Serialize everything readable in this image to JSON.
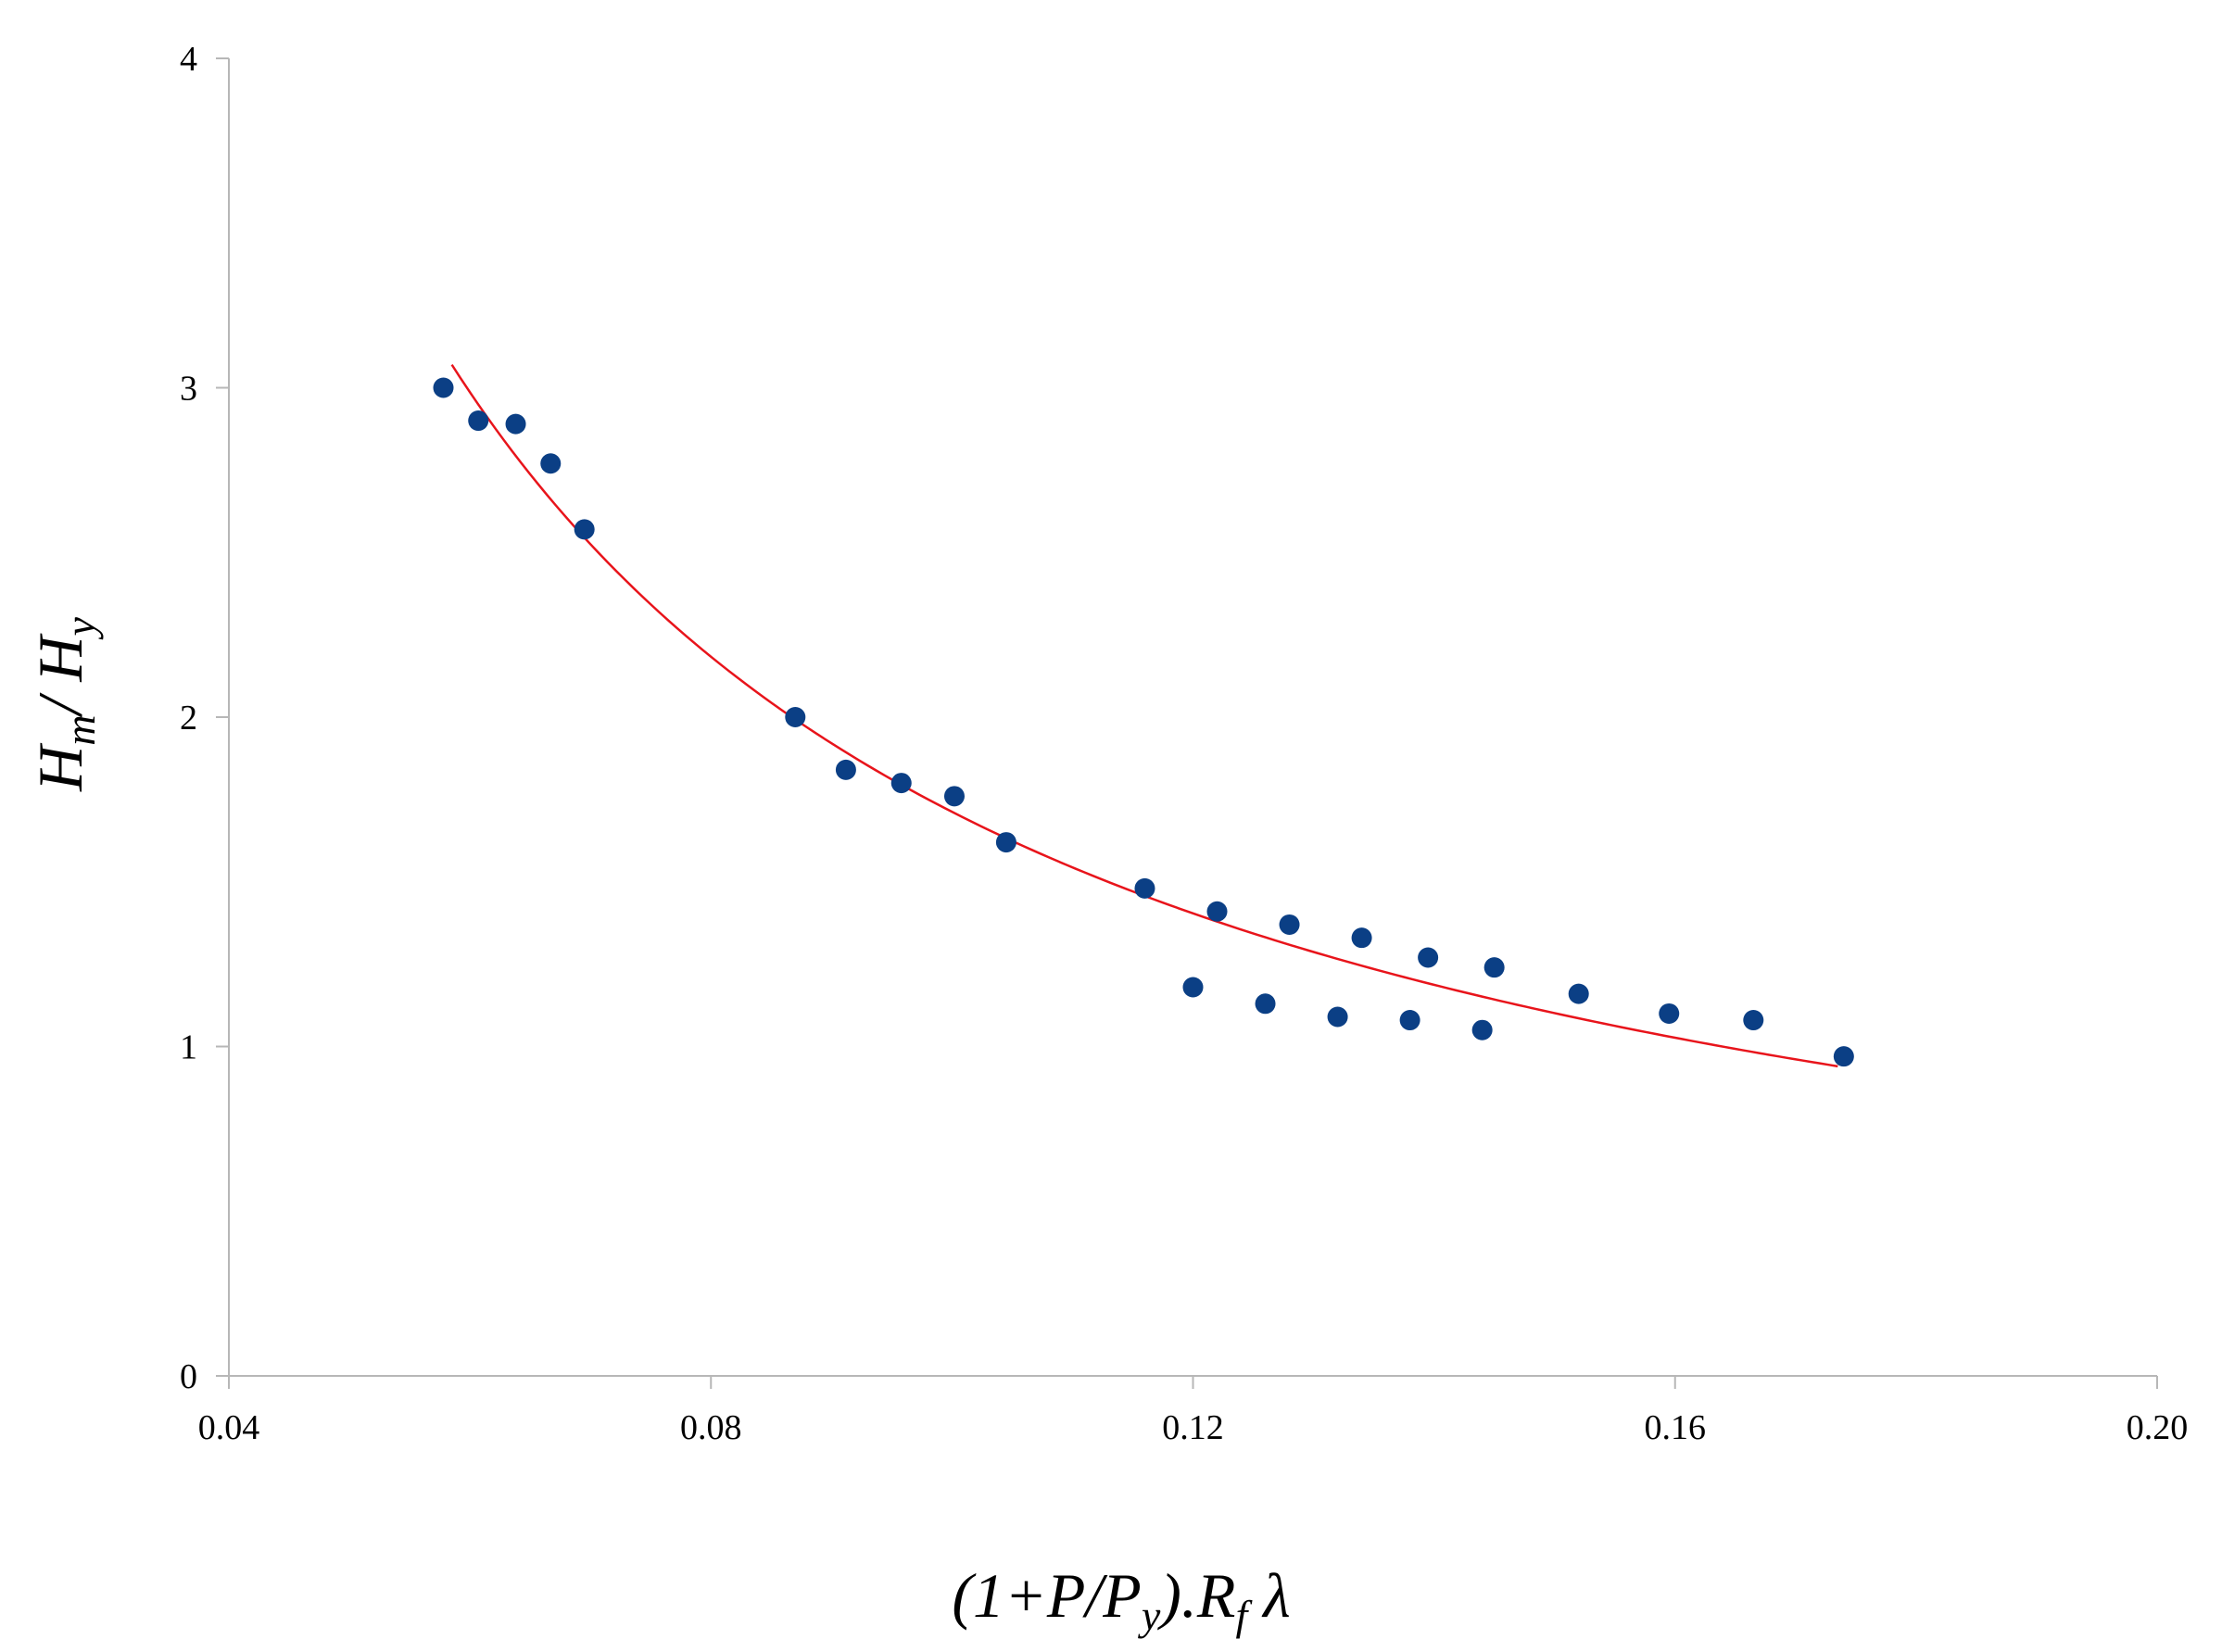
{
  "chart_data": {
    "type": "scatter",
    "title": "",
    "xlabel": {
      "parts": [
        {
          "t": "(1+P/P",
          "sub": false
        },
        {
          "t": "y",
          "sub": true
        },
        {
          "t": ").R",
          "sub": false
        },
        {
          "t": "f",
          "sub": true
        },
        {
          "t": " λ",
          "sub": false
        }
      ]
    },
    "ylabel": {
      "parts": [
        {
          "t": "H",
          "sub": false
        },
        {
          "t": "m",
          "sub": true
        },
        {
          "t": "/ H",
          "sub": false
        },
        {
          "t": "y",
          "sub": true
        }
      ]
    },
    "xlim": [
      0.04,
      0.2
    ],
    "ylim": [
      0,
      4
    ],
    "x_ticks": [
      "0.04",
      "0.08",
      "0.12",
      "0.16",
      "0.20"
    ],
    "y_ticks": [
      "0",
      "1",
      "2",
      "3",
      "4"
    ],
    "grid": false,
    "point_color": "#0b3f85",
    "curve_color": "#e8141b",
    "axis_color": "#b7b7b7",
    "points": [
      {
        "x": 0.0578,
        "y": 3.0
      },
      {
        "x": 0.0607,
        "y": 2.9
      },
      {
        "x": 0.0638,
        "y": 2.89
      },
      {
        "x": 0.0667,
        "y": 2.77
      },
      {
        "x": 0.0695,
        "y": 2.57
      },
      {
        "x": 0.087,
        "y": 2.0
      },
      {
        "x": 0.0912,
        "y": 1.84
      },
      {
        "x": 0.0958,
        "y": 1.8
      },
      {
        "x": 0.1002,
        "y": 1.76
      },
      {
        "x": 0.1045,
        "y": 1.62
      },
      {
        "x": 0.116,
        "y": 1.48
      },
      {
        "x": 0.12,
        "y": 1.18
      },
      {
        "x": 0.122,
        "y": 1.41
      },
      {
        "x": 0.126,
        "y": 1.13
      },
      {
        "x": 0.128,
        "y": 1.37
      },
      {
        "x": 0.132,
        "y": 1.09
      },
      {
        "x": 0.134,
        "y": 1.33
      },
      {
        "x": 0.138,
        "y": 1.08
      },
      {
        "x": 0.1395,
        "y": 1.27
      },
      {
        "x": 0.144,
        "y": 1.05
      },
      {
        "x": 0.145,
        "y": 1.24
      },
      {
        "x": 0.152,
        "y": 1.16
      },
      {
        "x": 0.1595,
        "y": 1.1
      },
      {
        "x": 0.1665,
        "y": 1.08
      },
      {
        "x": 0.174,
        "y": 0.97
      }
    ],
    "trendline": {
      "type": "power",
      "x_start": 0.0585,
      "x_end": 0.1735,
      "y_start": 3.07,
      "y_end": 0.94
    }
  }
}
